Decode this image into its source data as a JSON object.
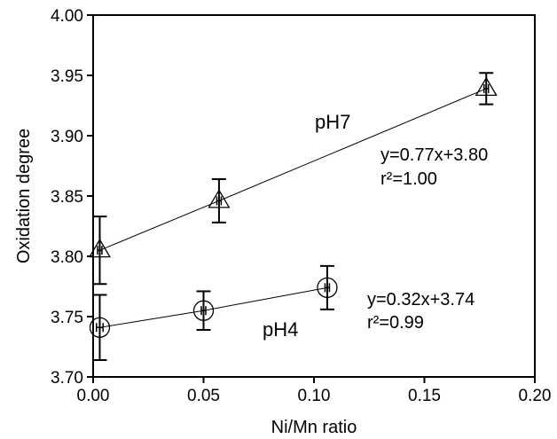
{
  "chart_data": {
    "type": "scatter",
    "xlabel": "Ni/Mn ratio",
    "ylabel": "Oxidation degree",
    "xlim": [
      0.0,
      0.2
    ],
    "ylim": [
      3.7,
      4.0
    ],
    "x_ticks": [
      "0.00",
      "0.05",
      "0.10",
      "0.15",
      "0.20"
    ],
    "y_ticks": [
      "3.70",
      "3.75",
      "3.80",
      "3.85",
      "3.90",
      "3.95",
      "4.00"
    ],
    "grid": false,
    "legend": "none",
    "series": [
      {
        "name": "pH7",
        "marker": "triangle",
        "points": [
          {
            "x": 0.003,
            "y": 3.805,
            "y_err": 0.028,
            "x_err": 0.001
          },
          {
            "x": 0.057,
            "y": 3.846,
            "y_err": 0.018,
            "x_err": 0.001
          },
          {
            "x": 0.178,
            "y": 3.939,
            "y_err": 0.013,
            "x_err": 0.001
          }
        ],
        "fit": {
          "slope": 0.77,
          "intercept": 3.8,
          "x_range": [
            0.003,
            0.178
          ]
        },
        "annotation": {
          "equation": "y=0.77x+3.80",
          "r2": "r²=1.00"
        }
      },
      {
        "name": "pH4",
        "marker": "circle",
        "points": [
          {
            "x": 0.003,
            "y": 3.741,
            "y_err": 0.027,
            "x_err": 0.0015
          },
          {
            "x": 0.05,
            "y": 3.755,
            "y_err": 0.016,
            "x_err": 0.001
          },
          {
            "x": 0.106,
            "y": 3.774,
            "y_err": 0.018,
            "x_err": 0.001
          }
        ],
        "fit": {
          "slope": 0.32,
          "intercept": 3.74,
          "x_range": [
            0.003,
            0.106
          ]
        },
        "annotation": {
          "equation": "y=0.32x+3.74",
          "r2": "r²=0.99"
        }
      }
    ],
    "colors": {
      "ink": "#000000",
      "background": "#ffffff"
    }
  }
}
